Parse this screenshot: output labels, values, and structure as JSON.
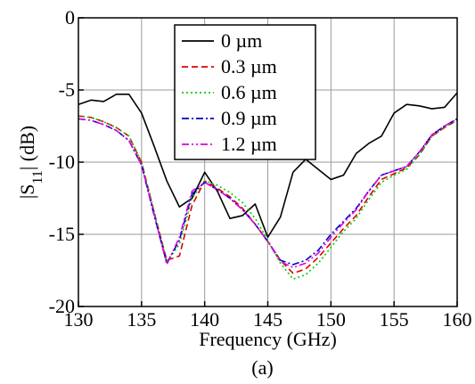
{
  "chart_data": {
    "type": "line",
    "xlabel": "Frequency (GHz)",
    "ylabel": "|S11| (dB)",
    "ylabel_main": "|S",
    "ylabel_sub": "11",
    "ylabel_tail": "| (dB)",
    "xlim": [
      130,
      160
    ],
    "ylim": [
      -20,
      0
    ],
    "xticks": [
      130,
      135,
      140,
      145,
      150,
      155,
      160
    ],
    "yticks": [
      0,
      -5,
      -10,
      -15,
      -20
    ],
    "grid": true,
    "legend_position": "top-center",
    "caption": "(a)",
    "x": [
      130,
      131,
      132,
      133,
      134,
      135,
      136,
      137,
      138,
      139,
      140,
      141,
      142,
      143,
      144,
      145,
      146,
      147,
      148,
      149,
      150,
      151,
      152,
      153,
      154,
      155,
      156,
      157,
      158,
      159,
      160
    ],
    "series": [
      {
        "name": "0 µm",
        "color": "#000000",
        "dash": "solid",
        "values": [
          -6.0,
          -5.7,
          -5.8,
          -5.3,
          -5.3,
          -6.6,
          -8.9,
          -11.3,
          -13.1,
          -12.5,
          -10.7,
          -12.0,
          -13.9,
          -13.7,
          -12.9,
          -15.2,
          -13.8,
          -10.7,
          -9.8,
          -10.5,
          -11.2,
          -10.9,
          -9.4,
          -8.7,
          -8.2,
          -6.6,
          -6.0,
          -6.1,
          -6.3,
          -6.2,
          -5.2
        ]
      },
      {
        "name": "0.3 µm",
        "color": "#e00000",
        "dash": "dashed",
        "values": [
          -6.8,
          -6.9,
          -7.2,
          -7.6,
          -8.2,
          -10.0,
          -13.5,
          -16.8,
          -16.5,
          -13.0,
          -11.3,
          -11.8,
          -12.4,
          -13.2,
          -14.3,
          -15.5,
          -16.8,
          -17.7,
          -17.4,
          -16.6,
          -15.6,
          -14.6,
          -13.7,
          -12.4,
          -11.2,
          -10.8,
          -10.4,
          -9.5,
          -8.2,
          -7.6,
          -7.1
        ]
      },
      {
        "name": "0.6 µm",
        "color": "#00cc00",
        "dash": "dotted",
        "values": [
          -6.8,
          -6.9,
          -7.2,
          -7.6,
          -8.2,
          -10.0,
          -13.4,
          -16.9,
          -15.7,
          -12.5,
          -11.3,
          -11.6,
          -12.1,
          -12.8,
          -13.9,
          -15.4,
          -17.0,
          -18.1,
          -17.8,
          -17.0,
          -15.9,
          -14.8,
          -13.9,
          -12.6,
          -11.4,
          -10.9,
          -10.5,
          -9.5,
          -8.2,
          -7.6,
          -7.1
        ]
      },
      {
        "name": "0.9 µm",
        "color": "#0000cc",
        "dash": "dashdot",
        "values": [
          -7.0,
          -7.1,
          -7.4,
          -7.8,
          -8.5,
          -10.2,
          -13.7,
          -17.0,
          -15.4,
          -12.2,
          -11.4,
          -11.9,
          -12.5,
          -13.3,
          -14.3,
          -15.5,
          -16.8,
          -17.1,
          -16.8,
          -16.1,
          -15.0,
          -14.1,
          -13.2,
          -12.0,
          -10.9,
          -10.6,
          -10.3,
          -9.3,
          -8.1,
          -7.5,
          -7.0
        ]
      },
      {
        "name": "1.2 µm",
        "color": "#dd00dd",
        "dash": "dashdotdot",
        "values": [
          -7.0,
          -7.1,
          -7.4,
          -7.8,
          -8.5,
          -10.2,
          -13.6,
          -17.1,
          -15.2,
          -12.0,
          -11.4,
          -11.9,
          -12.5,
          -13.3,
          -14.3,
          -15.5,
          -16.9,
          -17.3,
          -17.0,
          -16.3,
          -15.2,
          -14.2,
          -13.3,
          -12.0,
          -10.9,
          -10.6,
          -10.3,
          -9.3,
          -8.1,
          -7.5,
          -7.0
        ]
      }
    ]
  }
}
